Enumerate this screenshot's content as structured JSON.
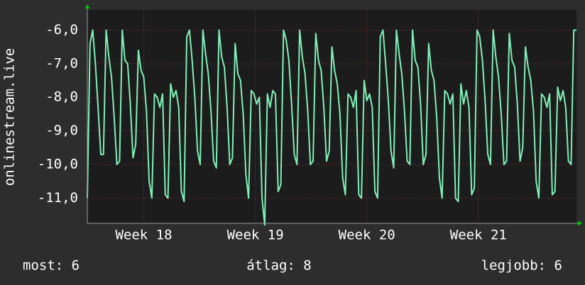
{
  "chart_data": {
    "type": "line",
    "y_label": "onlinestream.live",
    "color": "#7ff0b8",
    "grid": true,
    "ylim": [
      -11.75,
      -5.4
    ],
    "yticks": [
      {
        "value": -6,
        "label": "-6,0"
      },
      {
        "value": -7,
        "label": "-7,0"
      },
      {
        "value": -8,
        "label": "-8,0"
      },
      {
        "value": -9,
        "label": "-9,0"
      },
      {
        "value": -10,
        "label": "-10,0"
      },
      {
        "value": -11,
        "label": "-11,0"
      }
    ],
    "xlim": [
      0,
      182
    ],
    "xticks": [
      {
        "value": 21,
        "label": "Week 18"
      },
      {
        "value": 62.5,
        "label": "Week 19"
      },
      {
        "value": 104,
        "label": "Week 20"
      },
      {
        "value": 145.5,
        "label": "Week 21"
      }
    ],
    "values": [
      -11.0,
      -6.4,
      -6.0,
      -7.0,
      -8.3,
      -9.7,
      -9.7,
      -6.0,
      -6.8,
      -7.4,
      -8.6,
      -10.0,
      -9.9,
      -6.0,
      -6.9,
      -7.0,
      -8.2,
      -9.8,
      -9.4,
      -6.6,
      -7.2,
      -7.4,
      -8.4,
      -10.5,
      -11.0,
      -7.9,
      -8.0,
      -8.3,
      -7.9,
      -10.9,
      -11.0,
      -7.6,
      -8.0,
      -7.8,
      -8.3,
      -10.8,
      -11.1,
      -6.2,
      -6.0,
      -6.9,
      -8.0,
      -9.6,
      -10.0,
      -6.0,
      -6.7,
      -7.3,
      -8.4,
      -9.9,
      -10.1,
      -6.0,
      -6.8,
      -7.1,
      -8.3,
      -10.0,
      -9.8,
      -6.4,
      -7.3,
      -7.5,
      -8.5,
      -10.3,
      -11.0,
      -7.8,
      -7.9,
      -8.2,
      -8.0,
      -11.0,
      -11.8,
      -7.9,
      -8.3,
      -7.8,
      -7.9,
      -10.8,
      -10.6,
      -6.0,
      -6.3,
      -6.9,
      -8.2,
      -9.7,
      -10.0,
      -6.0,
      -6.8,
      -7.3,
      -8.4,
      -10.0,
      -9.9,
      -6.1,
      -6.9,
      -7.2,
      -8.3,
      -9.9,
      -9.6,
      -6.5,
      -7.2,
      -7.6,
      -8.5,
      -10.4,
      -10.9,
      -7.9,
      -8.0,
      -8.3,
      -7.8,
      -10.9,
      -11.0,
      -7.5,
      -8.1,
      -7.9,
      -8.3,
      -10.8,
      -11.0,
      -6.2,
      -6.0,
      -7.0,
      -8.1,
      -9.6,
      -10.1,
      -6.0,
      -6.7,
      -7.3,
      -8.4,
      -9.9,
      -10.0,
      -6.0,
      -6.9,
      -7.1,
      -8.2,
      -10.0,
      -9.7,
      -6.4,
      -7.2,
      -7.5,
      -8.6,
      -10.4,
      -11.0,
      -7.8,
      -7.9,
      -8.2,
      -7.9,
      -11.0,
      -11.1,
      -7.6,
      -8.2,
      -7.8,
      -8.3,
      -10.9,
      -10.7,
      -6.0,
      -6.2,
      -6.9,
      -8.1,
      -9.7,
      -10.0,
      -6.0,
      -6.8,
      -7.4,
      -8.5,
      -10.0,
      -9.9,
      -6.1,
      -6.9,
      -7.1,
      -8.2,
      -9.9,
      -9.5,
      -6.5,
      -7.1,
      -7.5,
      -8.4,
      -10.5,
      -11.0,
      -7.9,
      -8.0,
      -8.3,
      -7.9,
      -10.9,
      -10.8,
      -7.7,
      -8.1,
      -7.8,
      -8.3,
      -9.9,
      -10.0,
      -6.0,
      -6.0
    ],
    "annotations": [
      "most: 6",
      "átlag: 8",
      "legjobb: 6"
    ]
  }
}
